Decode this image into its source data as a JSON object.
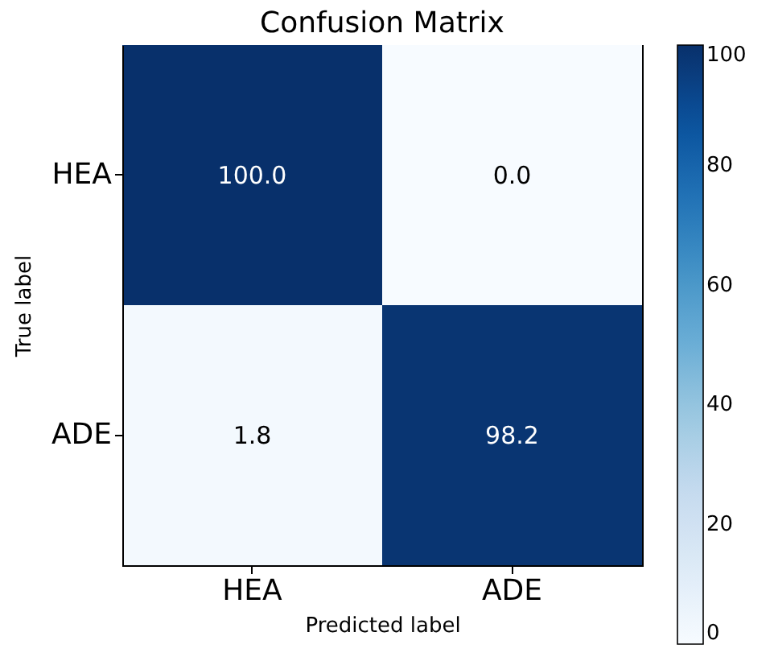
{
  "chart_data": {
    "type": "heatmap",
    "title": "Confusion Matrix",
    "xlabel": "Predicted label",
    "ylabel": "True label",
    "categories": [
      "HEA",
      "ADE"
    ],
    "y_categories": [
      "HEA",
      "ADE"
    ],
    "cells": [
      [
        100.0,
        0.0
      ],
      [
        1.8,
        98.2
      ]
    ],
    "cell_labels": [
      [
        "100.0",
        "0.0"
      ],
      [
        "1.8",
        "98.2"
      ]
    ],
    "clim": [
      0,
      100
    ],
    "cticks": [
      0,
      20,
      40,
      60,
      80,
      100
    ]
  }
}
